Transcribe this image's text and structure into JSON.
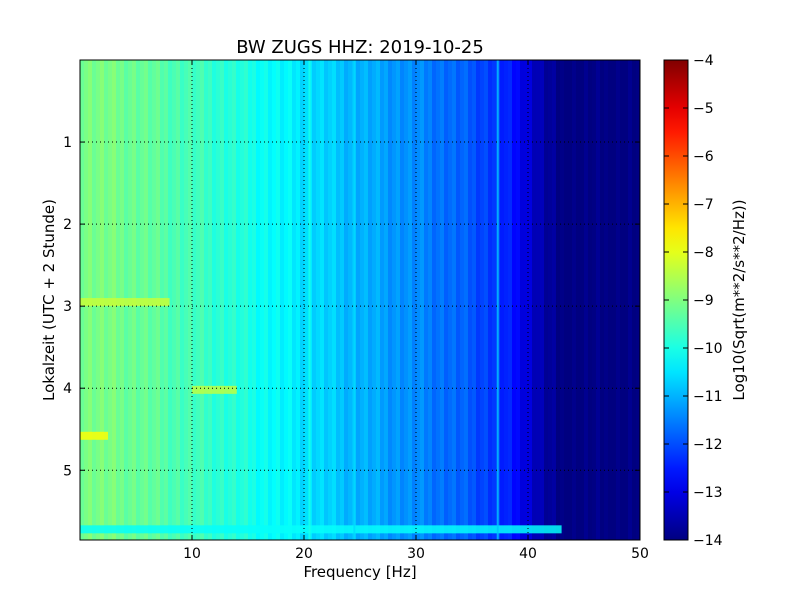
{
  "chart_data": {
    "type": "heatmap",
    "title": "BW ZUGS HHZ: 2019-10-25",
    "xlabel": "Frequency [Hz]",
    "ylabel": "Lokalzeit (UTC + 2 Stunde)",
    "xlim": [
      0,
      50
    ],
    "ylim": [
      5.85,
      0
    ],
    "y_inverted": true,
    "grid": true,
    "x_ticks": [
      {
        "value": 10,
        "label": "10"
      },
      {
        "value": 20,
        "label": "20"
      },
      {
        "value": 30,
        "label": "30"
      },
      {
        "value": 40,
        "label": "40"
      },
      {
        "value": 50,
        "label": "50"
      }
    ],
    "y_ticks": [
      {
        "value": 1,
        "label": "1"
      },
      {
        "value": 2,
        "label": "2"
      },
      {
        "value": 3,
        "label": "3"
      },
      {
        "value": 4,
        "label": "4"
      },
      {
        "value": 5,
        "label": "5"
      }
    ],
    "colorbar": {
      "label": "Log10(Sqrt(m**2/s**2/Hz))",
      "min": -14,
      "max": -4,
      "colormap": "jet",
      "ticks": [
        {
          "value": -4,
          "label": "−4"
        },
        {
          "value": -5,
          "label": "−5"
        },
        {
          "value": -6,
          "label": "−6"
        },
        {
          "value": -7,
          "label": "−7"
        },
        {
          "value": -8,
          "label": "−8"
        },
        {
          "value": -9,
          "label": "−9"
        },
        {
          "value": -10,
          "label": "−10"
        },
        {
          "value": -11,
          "label": "−11"
        },
        {
          "value": -12,
          "label": "−12"
        },
        {
          "value": -13,
          "label": "−13"
        },
        {
          "value": -14,
          "label": "−14"
        }
      ]
    },
    "spectral_profile": {
      "frequency_hz": [
        0,
        5,
        10,
        15,
        20,
        22,
        25,
        30,
        34,
        37,
        39,
        40,
        41,
        42,
        43,
        50
      ],
      "log_psd": [
        -9.0,
        -9.2,
        -9.6,
        -10.0,
        -10.5,
        -10.7,
        -11.0,
        -11.4,
        -11.8,
        -12.2,
        -12.7,
        -13.1,
        -13.5,
        -13.8,
        -14.0,
        -14.0
      ]
    },
    "features": [
      {
        "type": "band",
        "time": 2.95,
        "f_start": 0,
        "f_end": 8,
        "log_psd": -8.3
      },
      {
        "type": "band",
        "time": 4.02,
        "f_start": 10,
        "f_end": 14,
        "log_psd": -8.4
      },
      {
        "type": "band",
        "time": 4.58,
        "f_start": 0,
        "f_end": 2.5,
        "log_psd": -7.8
      },
      {
        "type": "band",
        "time": 5.72,
        "f_start": 0,
        "f_end": 43,
        "log_psd": -10.2
      },
      {
        "type": "line",
        "frequency_hz": 20.5,
        "log_psd": -10.0
      },
      {
        "type": "line",
        "frequency_hz": 24.5,
        "log_psd": -10.6
      },
      {
        "type": "line",
        "frequency_hz": 37.3,
        "log_psd": -10.8
      }
    ]
  }
}
